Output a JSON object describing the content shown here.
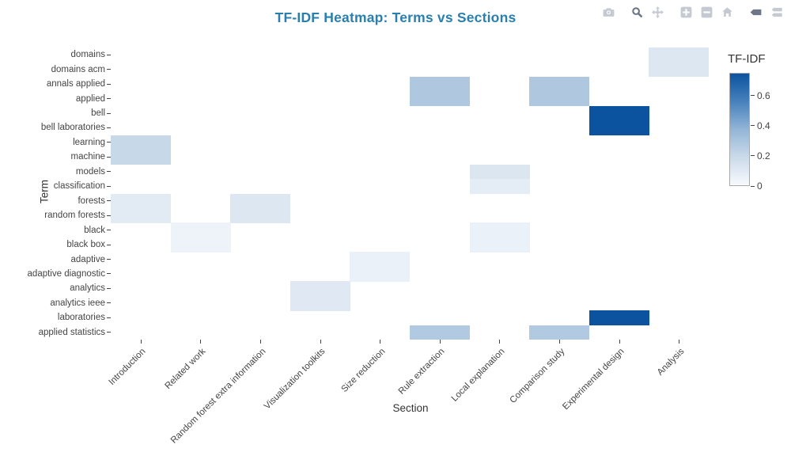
{
  "chart": {
    "title": "TF-IDF Heatmap: Terms vs Sections",
    "title_color": "#2a7fae"
  },
  "modebar": {
    "icons": [
      {
        "name": "camera-icon",
        "active": false
      },
      {
        "name": "zoom-icon",
        "active": true
      },
      {
        "name": "pan-icon",
        "active": false
      },
      {
        "name": "zoom-in-icon",
        "active": false
      },
      {
        "name": "zoom-out-icon",
        "active": false
      },
      {
        "name": "autoscale-icon",
        "active": false
      },
      {
        "name": "hover-closest-icon",
        "active": true
      },
      {
        "name": "hover-compare-icon",
        "active": false
      }
    ],
    "active_color": "#6e7787",
    "inactive_color": "#c5cad2"
  },
  "chart_data": {
    "type": "heatmap",
    "title": "TF-IDF Heatmap: Terms vs Sections",
    "xlabel": "Section",
    "ylabel": "Term",
    "x_categories": [
      "Introduction",
      "Related work",
      "Random forest extra information",
      "Visualization toolkits",
      "Size reduction",
      "Rule extraction",
      "Local explanation",
      "Comparison study",
      "Experimental design",
      "Analysis"
    ],
    "y_categories": [
      "domains",
      "domains acm",
      "annals applied",
      "applied",
      "bell",
      "bell laboratories",
      "learning",
      "machine",
      "models",
      "classification",
      "forests",
      "random forests",
      "black",
      "black box",
      "adaptive",
      "adaptive diagnostic",
      "analytics",
      "analytics ieee",
      "laboratories",
      "applied statistics"
    ],
    "z": [
      [
        0,
        0,
        0,
        0,
        0,
        0,
        0,
        0,
        0,
        0.11
      ],
      [
        0,
        0,
        0,
        0,
        0,
        0,
        0,
        0,
        0,
        0.11
      ],
      [
        0,
        0,
        0,
        0,
        0,
        0.28,
        0,
        0.28,
        0,
        0
      ],
      [
        0,
        0,
        0,
        0,
        0,
        0.28,
        0,
        0.28,
        0,
        0
      ],
      [
        0,
        0,
        0,
        0,
        0,
        0,
        0,
        0,
        0.75,
        0
      ],
      [
        0,
        0,
        0,
        0,
        0,
        0,
        0,
        0,
        0.75,
        0
      ],
      [
        0.2,
        0,
        0,
        0,
        0,
        0,
        0,
        0,
        0,
        0
      ],
      [
        0.2,
        0,
        0,
        0,
        0,
        0,
        0,
        0,
        0,
        0
      ],
      [
        0,
        0,
        0,
        0,
        0,
        0,
        0.12,
        0,
        0,
        0
      ],
      [
        0,
        0,
        0,
        0,
        0,
        0,
        0.08,
        0,
        0,
        0
      ],
      [
        0.09,
        0,
        0.11,
        0,
        0,
        0,
        0,
        0,
        0,
        0
      ],
      [
        0.09,
        0,
        0.11,
        0,
        0,
        0,
        0,
        0,
        0,
        0
      ],
      [
        0,
        0.04,
        0,
        0,
        0,
        0,
        0.05,
        0,
        0,
        0
      ],
      [
        0,
        0.04,
        0,
        0,
        0,
        0,
        0.05,
        0,
        0,
        0
      ],
      [
        0,
        0,
        0,
        0,
        0.05,
        0,
        0,
        0,
        0,
        0
      ],
      [
        0,
        0,
        0,
        0,
        0.05,
        0,
        0,
        0,
        0,
        0
      ],
      [
        0,
        0,
        0,
        0.1,
        0,
        0,
        0,
        0,
        0,
        0
      ],
      [
        0,
        0,
        0,
        0.1,
        0,
        0,
        0,
        0,
        0,
        0
      ],
      [
        0,
        0,
        0,
        0,
        0,
        0,
        0,
        0,
        0.75,
        0
      ],
      [
        0,
        0,
        0,
        0,
        0,
        0.27,
        0,
        0.27,
        0,
        0
      ]
    ],
    "colorbar": {
      "title": "TF-IDF",
      "ticks": [
        0,
        0.2,
        0.4,
        0.6
      ],
      "vmin": 0,
      "vmax": 0.75
    },
    "colorscale": [
      [
        0.0,
        "#f7fafd"
      ],
      [
        0.25,
        "#cbdaea"
      ],
      [
        0.5,
        "#93b5d6"
      ],
      [
        0.75,
        "#4781bc"
      ],
      [
        1.0,
        "#0b539f"
      ]
    ],
    "grid": false,
    "legend_position": "right-colorbar"
  }
}
